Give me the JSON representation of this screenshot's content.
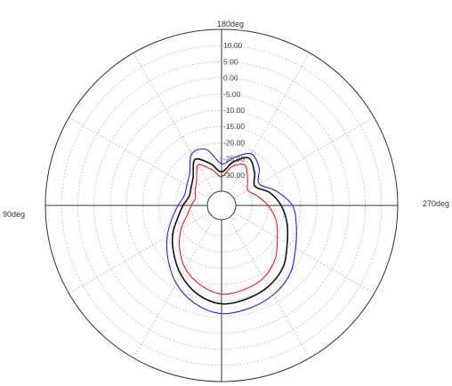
{
  "chart_data": {
    "type": "polar",
    "angle_unit": "deg",
    "angle_labels": {
      "top": "180deg",
      "left": "90deg",
      "right": "270deg"
    },
    "radial_axis": {
      "ticks": [
        10,
        5,
        0,
        -5,
        -10,
        -15,
        -20,
        -25,
        -30
      ],
      "tick_labels": [
        "10.00",
        "5.00",
        "0.00",
        "-5.00",
        "-10.00",
        "-15.00",
        "-20.00",
        "-25.00",
        "-30.00"
      ],
      "range": [
        -35,
        15
      ]
    },
    "grid": true,
    "series": [
      {
        "color": "#2222ee",
        "points": [
          [
            0,
            -6
          ],
          [
            15,
            -6.5
          ],
          [
            30,
            -7.5
          ],
          [
            45,
            -9.5
          ],
          [
            60,
            -13
          ],
          [
            75,
            -15.5
          ],
          [
            90,
            -17.5
          ],
          [
            105,
            -22
          ],
          [
            120,
            -26
          ],
          [
            135,
            -23
          ],
          [
            150,
            -21
          ],
          [
            165,
            -24
          ],
          [
            180,
            -26.5
          ],
          [
            195,
            -21.5
          ],
          [
            210,
            -21
          ],
          [
            225,
            -25.5
          ],
          [
            240,
            -27
          ],
          [
            255,
            -27.5
          ],
          [
            270,
            -26
          ],
          [
            285,
            -23.5
          ],
          [
            300,
            -20
          ],
          [
            315,
            -16
          ],
          [
            330,
            -11.5
          ],
          [
            345,
            -8
          ]
        ]
      },
      {
        "color": "#111111",
        "points": [
          [
            0,
            -9
          ],
          [
            15,
            -9.5
          ],
          [
            30,
            -10.5
          ],
          [
            45,
            -12.5
          ],
          [
            60,
            -16
          ],
          [
            75,
            -18.5
          ],
          [
            90,
            -21
          ],
          [
            105,
            -24
          ],
          [
            120,
            -27.5
          ],
          [
            135,
            -25
          ],
          [
            150,
            -22.5
          ],
          [
            165,
            -25.5
          ],
          [
            180,
            -29
          ],
          [
            195,
            -26
          ],
          [
            210,
            -23
          ],
          [
            225,
            -27
          ],
          [
            240,
            -28.5
          ],
          [
            255,
            -29
          ],
          [
            270,
            -27.5
          ],
          [
            285,
            -25.5
          ],
          [
            300,
            -22
          ],
          [
            315,
            -18.5
          ],
          [
            330,
            -14.5
          ],
          [
            345,
            -11
          ]
        ]
      },
      {
        "color": "#e02020",
        "points": [
          [
            0,
            -12
          ],
          [
            15,
            -12.5
          ],
          [
            30,
            -13.5
          ],
          [
            45,
            -16
          ],
          [
            60,
            -19.5
          ],
          [
            75,
            -22
          ],
          [
            90,
            -25
          ],
          [
            105,
            -28
          ],
          [
            120,
            -30
          ],
          [
            135,
            -28
          ],
          [
            150,
            -25
          ],
          [
            165,
            -27
          ],
          [
            180,
            -30.5
          ],
          [
            195,
            -28
          ],
          [
            210,
            -25
          ],
          [
            225,
            -28.5
          ],
          [
            240,
            -30
          ],
          [
            255,
            -31
          ],
          [
            270,
            -30
          ],
          [
            285,
            -28.5
          ],
          [
            300,
            -25
          ],
          [
            315,
            -21
          ],
          [
            330,
            -17
          ],
          [
            345,
            -14
          ]
        ]
      }
    ]
  }
}
